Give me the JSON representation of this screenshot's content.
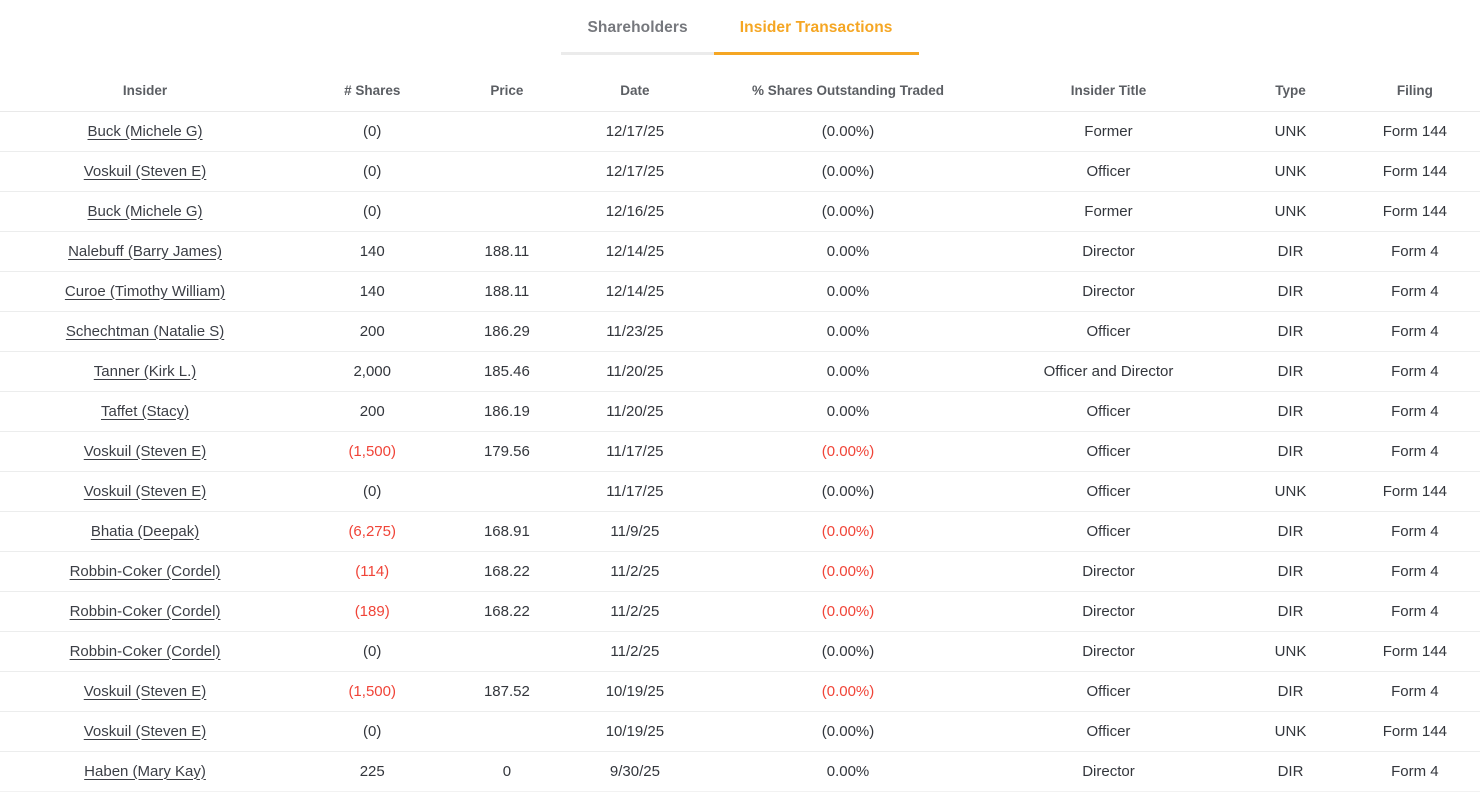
{
  "colors": {
    "accent_orange": "#F5A623",
    "negative_red": "#F04438",
    "inactive_tab_gray": "#76787d",
    "header_text_gray": "#5b5e63",
    "body_text": "#33363c",
    "divider": "#eceded"
  },
  "tabs": [
    {
      "label": "Shareholders",
      "active": false
    },
    {
      "label": "Insider Transactions",
      "active": true
    }
  ],
  "table": {
    "columns": [
      "Insider",
      "# Shares",
      "Price",
      "Date",
      "% Shares Outstanding Traded",
      "Insider Title",
      "Type",
      "Filing"
    ],
    "rows": [
      {
        "insider": "Buck (Michele G)",
        "shares": "(0)",
        "shares_negative": false,
        "price": "",
        "date": "12/17/25",
        "pct": "(0.00%)",
        "pct_negative": false,
        "title": "Former",
        "type": "UNK",
        "filing": "Form 144"
      },
      {
        "insider": "Voskuil (Steven E)",
        "shares": "(0)",
        "shares_negative": false,
        "price": "",
        "date": "12/17/25",
        "pct": "(0.00%)",
        "pct_negative": false,
        "title": "Officer",
        "type": "UNK",
        "filing": "Form 144"
      },
      {
        "insider": "Buck (Michele G)",
        "shares": "(0)",
        "shares_negative": false,
        "price": "",
        "date": "12/16/25",
        "pct": "(0.00%)",
        "pct_negative": false,
        "title": "Former",
        "type": "UNK",
        "filing": "Form 144"
      },
      {
        "insider": "Nalebuff (Barry James)",
        "shares": "140",
        "shares_negative": false,
        "price": "188.11",
        "date": "12/14/25",
        "pct": "0.00%",
        "pct_negative": false,
        "title": "Director",
        "type": "DIR",
        "filing": "Form 4"
      },
      {
        "insider": "Curoe (Timothy William)",
        "shares": "140",
        "shares_negative": false,
        "price": "188.11",
        "date": "12/14/25",
        "pct": "0.00%",
        "pct_negative": false,
        "title": "Director",
        "type": "DIR",
        "filing": "Form 4"
      },
      {
        "insider": "Schechtman (Natalie S)",
        "shares": "200",
        "shares_negative": false,
        "price": "186.29",
        "date": "11/23/25",
        "pct": "0.00%",
        "pct_negative": false,
        "title": "Officer",
        "type": "DIR",
        "filing": "Form 4"
      },
      {
        "insider": "Tanner (Kirk L.)",
        "shares": "2,000",
        "shares_negative": false,
        "price": "185.46",
        "date": "11/20/25",
        "pct": "0.00%",
        "pct_negative": false,
        "title": "Officer and Director",
        "type": "DIR",
        "filing": "Form 4"
      },
      {
        "insider": "Taffet (Stacy)",
        "shares": "200",
        "shares_negative": false,
        "price": "186.19",
        "date": "11/20/25",
        "pct": "0.00%",
        "pct_negative": false,
        "title": "Officer",
        "type": "DIR",
        "filing": "Form 4"
      },
      {
        "insider": "Voskuil (Steven E)",
        "shares": "(1,500)",
        "shares_negative": true,
        "price": "179.56",
        "date": "11/17/25",
        "pct": "(0.00%)",
        "pct_negative": true,
        "title": "Officer",
        "type": "DIR",
        "filing": "Form 4"
      },
      {
        "insider": "Voskuil (Steven E)",
        "shares": "(0)",
        "shares_negative": false,
        "price": "",
        "date": "11/17/25",
        "pct": "(0.00%)",
        "pct_negative": false,
        "title": "Officer",
        "type": "UNK",
        "filing": "Form 144"
      },
      {
        "insider": "Bhatia (Deepak)",
        "shares": "(6,275)",
        "shares_negative": true,
        "price": "168.91",
        "date": "11/9/25",
        "pct": "(0.00%)",
        "pct_negative": true,
        "title": "Officer",
        "type": "DIR",
        "filing": "Form 4"
      },
      {
        "insider": "Robbin-Coker (Cordel)",
        "shares": "(114)",
        "shares_negative": true,
        "price": "168.22",
        "date": "11/2/25",
        "pct": "(0.00%)",
        "pct_negative": true,
        "title": "Director",
        "type": "DIR",
        "filing": "Form 4"
      },
      {
        "insider": "Robbin-Coker (Cordel)",
        "shares": "(189)",
        "shares_negative": true,
        "price": "168.22",
        "date": "11/2/25",
        "pct": "(0.00%)",
        "pct_negative": true,
        "title": "Director",
        "type": "DIR",
        "filing": "Form 4"
      },
      {
        "insider": "Robbin-Coker (Cordel)",
        "shares": "(0)",
        "shares_negative": false,
        "price": "",
        "date": "11/2/25",
        "pct": "(0.00%)",
        "pct_negative": false,
        "title": "Director",
        "type": "UNK",
        "filing": "Form 144"
      },
      {
        "insider": "Voskuil (Steven E)",
        "shares": "(1,500)",
        "shares_negative": true,
        "price": "187.52",
        "date": "10/19/25",
        "pct": "(0.00%)",
        "pct_negative": true,
        "title": "Officer",
        "type": "DIR",
        "filing": "Form 4"
      },
      {
        "insider": "Voskuil (Steven E)",
        "shares": "(0)",
        "shares_negative": false,
        "price": "",
        "date": "10/19/25",
        "pct": "(0.00%)",
        "pct_negative": false,
        "title": "Officer",
        "type": "UNK",
        "filing": "Form 144"
      },
      {
        "insider": "Haben (Mary Kay)",
        "shares": "225",
        "shares_negative": false,
        "price": "0",
        "date": "9/30/25",
        "pct": "0.00%",
        "pct_negative": false,
        "title": "Director",
        "type": "DIR",
        "filing": "Form 4"
      }
    ]
  }
}
